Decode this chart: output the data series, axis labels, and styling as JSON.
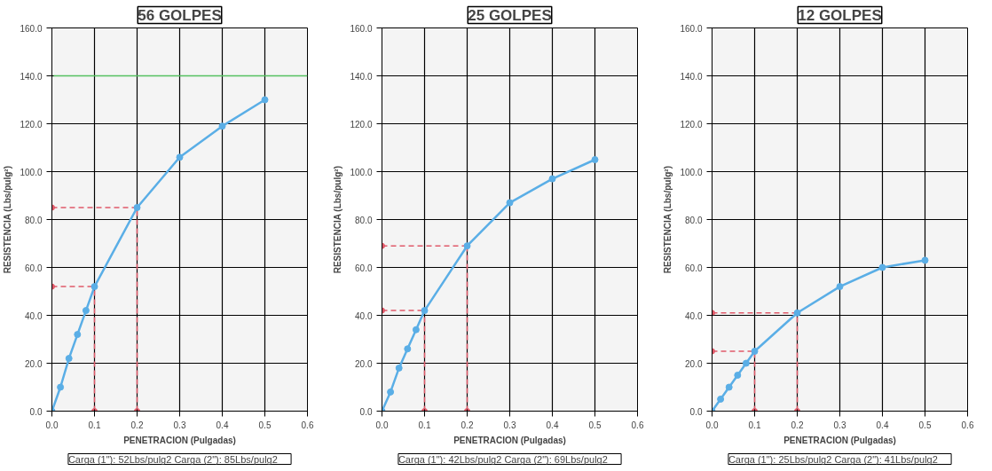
{
  "chart_data": [
    {
      "type": "line",
      "title": "56 GOLPES",
      "xlabel": "PENETRACION (Pulgadas)",
      "ylabel": "RESISTENCIA (Lbs/pulg²)",
      "x": [
        0,
        0.02,
        0.04,
        0.06,
        0.08,
        0.1,
        0.2,
        0.3,
        0.4,
        0.5
      ],
      "series": [
        {
          "color": "#5aaee6",
          "values": [
            0,
            10,
            22,
            32,
            42,
            52,
            85,
            106,
            119,
            130
          ]
        },
        {
          "type": "scatter",
          "color": "#e05a6a",
          "x": [
            0.1,
            0.2,
            0,
            0
          ],
          "values": [
            0,
            0,
            52,
            85
          ]
        }
      ],
      "xlim": [
        0,
        0.6
      ],
      "ylim": [
        0,
        160
      ],
      "xticks": [
        {
          "value": 0,
          "label": "0.0"
        },
        {
          "value": 0.1,
          "label": "0.1"
        },
        {
          "value": 0.2,
          "label": "0.2"
        },
        {
          "value": 0.3,
          "label": "0.3"
        },
        {
          "value": 0.4,
          "label": "0.4"
        },
        {
          "value": 0.5,
          "label": "0.5"
        },
        {
          "value": 0.6,
          "label": "0.6"
        }
      ],
      "yticks": [
        {
          "value": 0,
          "label": "0.0"
        },
        {
          "value": 20,
          "label": "20.0"
        },
        {
          "value": 40,
          "label": "40.0"
        },
        {
          "value": 60,
          "label": "60.0"
        },
        {
          "value": 80,
          "label": "80.0"
        },
        {
          "value": 100,
          "label": "100.0"
        },
        {
          "value": 120,
          "label": "120.0"
        },
        {
          "value": 140,
          "label": "140.0"
        },
        {
          "value": 160,
          "label": "160.0"
        }
      ],
      "ref_lines": [
        {
          "axis": "y",
          "value": 140,
          "color": "#55c060",
          "line_style": "solid"
        },
        {
          "axis": "x",
          "value": 0.1,
          "color": "#e05a6a",
          "line_style": "dashed"
        },
        {
          "axis": "x",
          "value": 0.2,
          "color": "#e05a6a",
          "line_style": "dashed"
        },
        {
          "axis": "y",
          "value": 52,
          "color": "#e05a6a",
          "line_style": "dashed"
        },
        {
          "axis": "y",
          "value": 85,
          "color": "#e05a6a",
          "line_style": "dashed"
        }
      ],
      "annotations": [
        "Carga (1\"): 52Lbs/pulg2",
        "Carga (2\"): 85Lbs/pulg2"
      ],
      "grid": true,
      "marker": "circle",
      "line_style": "solid"
    },
    {
      "type": "line",
      "title": "25 GOLPES",
      "xlabel": "PENETRACION (Pulgadas)",
      "ylabel": "RESISTENCIA (Lbs/pulg²)",
      "x": [
        0,
        0.02,
        0.04,
        0.06,
        0.08,
        0.1,
        0.2,
        0.3,
        0.4,
        0.5
      ],
      "series": [
        {
          "color": "#5aaee6",
          "values": [
            0,
            8,
            18,
            26,
            34,
            42,
            69,
            87,
            97,
            105
          ]
        },
        {
          "type": "scatter",
          "color": "#e05a6a",
          "x": [
            0.1,
            0.2,
            0,
            0
          ],
          "values": [
            0,
            0,
            42,
            69
          ]
        }
      ],
      "xlim": [
        0,
        0.6
      ],
      "ylim": [
        0,
        160
      ],
      "xticks": [
        {
          "value": 0,
          "label": "0.0"
        },
        {
          "value": 0.1,
          "label": "0.1"
        },
        {
          "value": 0.2,
          "label": "0.2"
        },
        {
          "value": 0.3,
          "label": "0.3"
        },
        {
          "value": 0.4,
          "label": "0.4"
        },
        {
          "value": 0.5,
          "label": "0.5"
        },
        {
          "value": 0.6,
          "label": "0.6"
        }
      ],
      "yticks": [
        {
          "value": 0,
          "label": "0.0"
        },
        {
          "value": 20,
          "label": "20.0"
        },
        {
          "value": 40,
          "label": "40.0"
        },
        {
          "value": 60,
          "label": "60.0"
        },
        {
          "value": 80,
          "label": "80.0"
        },
        {
          "value": 100,
          "label": "100.0"
        },
        {
          "value": 120,
          "label": "120.0"
        },
        {
          "value": 140,
          "label": "140.0"
        },
        {
          "value": 160,
          "label": "160.0"
        }
      ],
      "ref_lines": [
        {
          "axis": "x",
          "value": 0.1,
          "color": "#e05a6a",
          "line_style": "dashed"
        },
        {
          "axis": "x",
          "value": 0.2,
          "color": "#e05a6a",
          "line_style": "dashed"
        },
        {
          "axis": "y",
          "value": 42,
          "color": "#e05a6a",
          "line_style": "dashed"
        },
        {
          "axis": "y",
          "value": 69,
          "color": "#e05a6a",
          "line_style": "dashed"
        }
      ],
      "annotations": [
        "Carga (1\"): 42Lbs/pulg2",
        "Carga (2\"): 69Lbs/pulg2"
      ],
      "grid": true,
      "marker": "circle",
      "line_style": "solid"
    },
    {
      "type": "line",
      "title": "12 GOLPES",
      "xlabel": "PENETRACION (Pulgadas)",
      "ylabel": "RESISTENCIA (Lbs/pulg²)",
      "x": [
        0,
        0.02,
        0.04,
        0.06,
        0.08,
        0.1,
        0.2,
        0.3,
        0.4,
        0.5
      ],
      "series": [
        {
          "color": "#5aaee6",
          "values": [
            0,
            5,
            10,
            15,
            20,
            25,
            41,
            52,
            60,
            63
          ]
        },
        {
          "type": "scatter",
          "color": "#e05a6a",
          "x": [
            0.1,
            0.2,
            0,
            0
          ],
          "values": [
            0,
            0,
            25,
            41
          ]
        }
      ],
      "xlim": [
        0,
        0.6
      ],
      "ylim": [
        0,
        160
      ],
      "xticks": [
        {
          "value": 0,
          "label": "0.0"
        },
        {
          "value": 0.1,
          "label": "0.1"
        },
        {
          "value": 0.2,
          "label": "0.2"
        },
        {
          "value": 0.3,
          "label": "0.3"
        },
        {
          "value": 0.4,
          "label": "0.4"
        },
        {
          "value": 0.5,
          "label": "0.5"
        },
        {
          "value": 0.6,
          "label": "0.6"
        }
      ],
      "yticks": [
        {
          "value": 0,
          "label": "0.0"
        },
        {
          "value": 20,
          "label": "20.0"
        },
        {
          "value": 40,
          "label": "40.0"
        },
        {
          "value": 60,
          "label": "60.0"
        },
        {
          "value": 80,
          "label": "80.0"
        },
        {
          "value": 100,
          "label": "100.0"
        },
        {
          "value": 120,
          "label": "120.0"
        },
        {
          "value": 140,
          "label": "140.0"
        },
        {
          "value": 160,
          "label": "160.0"
        }
      ],
      "ref_lines": [
        {
          "axis": "x",
          "value": 0.1,
          "color": "#e05a6a",
          "line_style": "dashed"
        },
        {
          "axis": "x",
          "value": 0.2,
          "color": "#e05a6a",
          "line_style": "dashed"
        },
        {
          "axis": "y",
          "value": 25,
          "color": "#e05a6a",
          "line_style": "dashed"
        },
        {
          "axis": "y",
          "value": 41,
          "color": "#e05a6a",
          "line_style": "dashed"
        }
      ],
      "annotations": [
        "Carga (1\"): 25Lbs/pulg2",
        "Carga (2\"): 41Lbs/pulg2"
      ],
      "grid": true,
      "marker": "circle",
      "line_style": "solid"
    }
  ]
}
